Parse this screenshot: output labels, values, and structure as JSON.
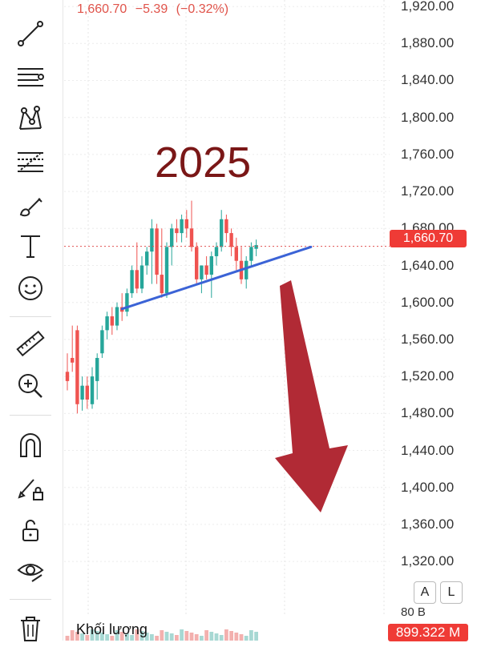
{
  "header": {
    "price": "1,660.70",
    "change": "−5.39",
    "change_pct": "(−0.32%)"
  },
  "price_axis": {
    "labels": [
      "1,920.00",
      "1,880.00",
      "1,840.00",
      "1,800.00",
      "1,760.00",
      "1,720.00",
      "1,680.00",
      "1,640.00",
      "1,600.00",
      "1,560.00",
      "1,520.00",
      "1,480.00",
      "1,440.00",
      "1,400.00",
      "1,360.00",
      "1,320.00"
    ],
    "current_price_tag": "1,660.70"
  },
  "annotation": {
    "year_text": "2025",
    "arrow_color": "#b12a35",
    "trendline_color": "#3b63d6"
  },
  "scale_buttons": {
    "auto": "A",
    "log": "L"
  },
  "volume": {
    "label": "Khối lượng",
    "value_tag": "899.322 M",
    "scale_label": "80 B"
  },
  "toolbar": {
    "icons": [
      "trend-line-icon",
      "horizontal-lines-icon",
      "pattern-icon",
      "fib-retracement-icon",
      "brush-icon",
      "text-icon",
      "emoji-icon",
      "ruler-icon",
      "zoom-in-icon",
      "magnet-icon",
      "lock-drawing-icon",
      "unlock-icon",
      "eye-icon",
      "trash-icon"
    ]
  },
  "colors": {
    "up": "#26a69a",
    "down": "#ef5350",
    "tag": "#ef3b36"
  },
  "chart_data": {
    "type": "candlestick",
    "unit": "price",
    "candles": [
      {
        "o": 1525,
        "h": 1545,
        "l": 1505,
        "c": 1515
      },
      {
        "o": 1540,
        "h": 1575,
        "l": 1525,
        "c": 1535
      },
      {
        "o": 1570,
        "h": 1575,
        "l": 1480,
        "c": 1490
      },
      {
        "o": 1495,
        "h": 1520,
        "l": 1483,
        "c": 1510
      },
      {
        "o": 1510,
        "h": 1520,
        "l": 1485,
        "c": 1495
      },
      {
        "o": 1490,
        "h": 1530,
        "l": 1485,
        "c": 1520
      },
      {
        "o": 1515,
        "h": 1545,
        "l": 1495,
        "c": 1540
      },
      {
        "o": 1545,
        "h": 1575,
        "l": 1540,
        "c": 1570
      },
      {
        "o": 1570,
        "h": 1590,
        "l": 1560,
        "c": 1585
      },
      {
        "o": 1585,
        "h": 1595,
        "l": 1565,
        "c": 1575
      },
      {
        "o": 1575,
        "h": 1600,
        "l": 1570,
        "c": 1595
      },
      {
        "o": 1595,
        "h": 1610,
        "l": 1580,
        "c": 1590
      },
      {
        "o": 1590,
        "h": 1615,
        "l": 1585,
        "c": 1610
      },
      {
        "o": 1610,
        "h": 1640,
        "l": 1605,
        "c": 1635
      },
      {
        "o": 1635,
        "h": 1665,
        "l": 1610,
        "c": 1615
      },
      {
        "o": 1615,
        "h": 1650,
        "l": 1610,
        "c": 1640
      },
      {
        "o": 1640,
        "h": 1660,
        "l": 1630,
        "c": 1655
      },
      {
        "o": 1655,
        "h": 1690,
        "l": 1620,
        "c": 1680
      },
      {
        "o": 1680,
        "h": 1685,
        "l": 1620,
        "c": 1630
      },
      {
        "o": 1630,
        "h": 1680,
        "l": 1605,
        "c": 1610
      },
      {
        "o": 1610,
        "h": 1665,
        "l": 1605,
        "c": 1660
      },
      {
        "o": 1660,
        "h": 1685,
        "l": 1640,
        "c": 1680
      },
      {
        "o": 1680,
        "h": 1690,
        "l": 1665,
        "c": 1675
      },
      {
        "o": 1675,
        "h": 1695,
        "l": 1665,
        "c": 1690
      },
      {
        "o": 1690,
        "h": 1700,
        "l": 1670,
        "c": 1680
      },
      {
        "o": 1680,
        "h": 1710,
        "l": 1655,
        "c": 1660
      },
      {
        "o": 1660,
        "h": 1665,
        "l": 1620,
        "c": 1625
      },
      {
        "o": 1625,
        "h": 1640,
        "l": 1610,
        "c": 1640
      },
      {
        "o": 1640,
        "h": 1650,
        "l": 1625,
        "c": 1630
      },
      {
        "o": 1630,
        "h": 1655,
        "l": 1605,
        "c": 1650
      },
      {
        "o": 1650,
        "h": 1665,
        "l": 1640,
        "c": 1660
      },
      {
        "o": 1660,
        "h": 1700,
        "l": 1655,
        "c": 1690
      },
      {
        "o": 1690,
        "h": 1695,
        "l": 1665,
        "c": 1675
      },
      {
        "o": 1675,
        "h": 1680,
        "l": 1650,
        "c": 1660
      },
      {
        "o": 1660,
        "h": 1670,
        "l": 1635,
        "c": 1645
      },
      {
        "o": 1645,
        "h": 1660,
        "l": 1620,
        "c": 1625
      },
      {
        "o": 1625,
        "h": 1650,
        "l": 1615,
        "c": 1645
      },
      {
        "o": 1645,
        "h": 1665,
        "l": 1640,
        "c": 1660
      },
      {
        "o": 1658,
        "h": 1668,
        "l": 1650,
        "c": 1662
      }
    ],
    "trendline": {
      "from_index": 11,
      "from_price": 1593,
      "to_index": 49,
      "to_price": 1660
    },
    "current_price": 1660.7,
    "ylim": [
      1282,
      1927
    ]
  }
}
